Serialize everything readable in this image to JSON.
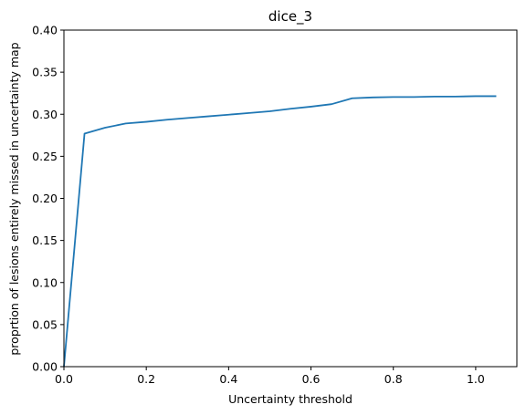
{
  "chart_data": {
    "type": "line",
    "title": "dice_3",
    "xlabel": "Uncertainty threshold",
    "ylabel": "proprtion of lesions entirely missed in uncertainty map",
    "xlim": [
      0.0,
      1.1
    ],
    "ylim": [
      0.0,
      0.4
    ],
    "xticks": [
      0.0,
      0.2,
      0.4,
      0.6,
      0.8,
      1.0
    ],
    "xtick_labels": [
      "0.0",
      "0.2",
      "0.4",
      "0.6",
      "0.8",
      "1.0"
    ],
    "yticks": [
      0.0,
      0.05,
      0.1,
      0.15,
      0.2,
      0.25,
      0.3,
      0.35,
      0.4
    ],
    "ytick_labels": [
      "0.00",
      "0.05",
      "0.10",
      "0.15",
      "0.20",
      "0.25",
      "0.30",
      "0.35",
      "0.40"
    ],
    "grid": false,
    "series": [
      {
        "name": "dice_3",
        "color": "#1f77b4",
        "x": [
          0.0,
          0.05,
          0.1,
          0.15,
          0.2,
          0.25,
          0.3,
          0.35,
          0.4,
          0.45,
          0.5,
          0.55,
          0.6,
          0.65,
          0.7,
          0.75,
          0.8,
          0.85,
          0.9,
          0.95,
          1.0,
          1.05
        ],
        "y": [
          0.0,
          0.277,
          0.284,
          0.289,
          0.291,
          0.2935,
          0.2955,
          0.2975,
          0.2995,
          0.3015,
          0.3035,
          0.3065,
          0.309,
          0.312,
          0.319,
          0.32,
          0.3205,
          0.3205,
          0.321,
          0.321,
          0.3215,
          0.3215
        ]
      }
    ]
  }
}
